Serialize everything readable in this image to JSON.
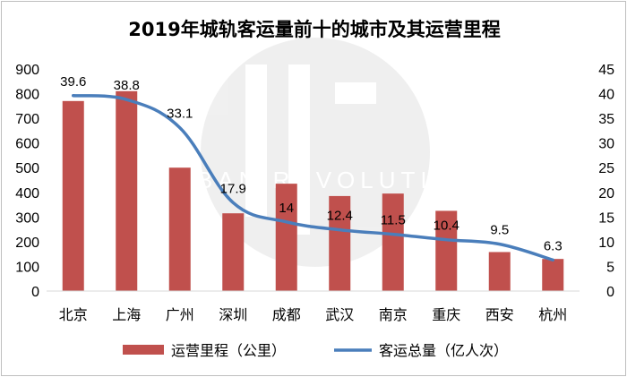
{
  "chart_data": {
    "type": "bar+line",
    "title": "2019年城轨客运量前十的城市及其运营里程",
    "categories": [
      "北京",
      "上海",
      "广州",
      "深圳",
      "成都",
      "武汉",
      "南京",
      "重庆",
      "西安",
      "杭州"
    ],
    "series": [
      {
        "name": "运营里程（公里）",
        "type": "bar",
        "axis": "left",
        "color": "#c0504d",
        "values": [
          770,
          810,
          500,
          315,
          435,
          385,
          395,
          325,
          158,
          130
        ]
      },
      {
        "name": "客运总量（亿人次）",
        "type": "line",
        "axis": "right",
        "color": "#4a7ebb",
        "values": [
          39.6,
          38.8,
          33.1,
          17.9,
          14,
          12.4,
          11.5,
          10.4,
          9.5,
          6.3
        ],
        "labels": [
          "39.6",
          "38.8",
          "33.1",
          "17.9",
          "14",
          "12.4",
          "11.5",
          "10.4",
          "9.5",
          "6.3"
        ]
      }
    ],
    "y_left": {
      "min": 0,
      "max": 900,
      "step": 100,
      "ticks": [
        "0",
        "100",
        "200",
        "300",
        "400",
        "500",
        "600",
        "700",
        "800",
        "900"
      ]
    },
    "y_right": {
      "min": 0,
      "max": 45,
      "step": 5,
      "ticks": [
        "0",
        "5",
        "10",
        "15",
        "20",
        "25",
        "30",
        "35",
        "40",
        "45"
      ]
    },
    "grid": false,
    "legend_position": "bottom",
    "watermark_text": "URBAN REVOLUTION"
  }
}
